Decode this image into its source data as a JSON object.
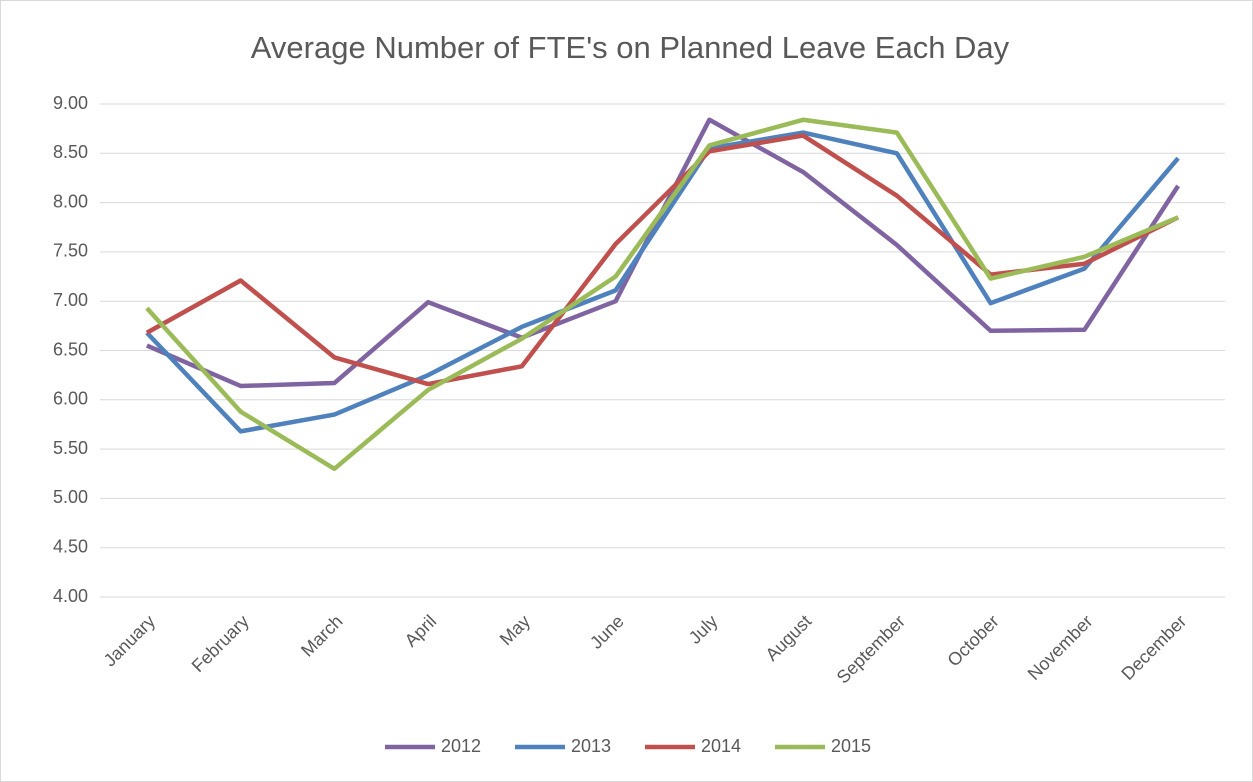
{
  "chart_data": {
    "type": "line",
    "title": "Average Number of FTE's on Planned Leave Each Day",
    "categories": [
      "January",
      "February",
      "March",
      "April",
      "May",
      "June",
      "July",
      "August",
      "September",
      "October",
      "November",
      "December"
    ],
    "series": [
      {
        "name": "2012",
        "color": "#8064a2",
        "values": [
          6.55,
          6.14,
          6.17,
          6.99,
          6.63,
          7.0,
          8.84,
          8.31,
          7.57,
          6.7,
          6.71,
          8.17
        ]
      },
      {
        "name": "2013",
        "color": "#4f81bd",
        "values": [
          6.68,
          5.68,
          5.85,
          6.25,
          6.74,
          7.11,
          8.55,
          8.71,
          8.5,
          6.98,
          7.33,
          8.45
        ]
      },
      {
        "name": "2014",
        "color": "#c0504d",
        "values": [
          6.68,
          7.21,
          6.43,
          6.16,
          6.34,
          7.58,
          8.52,
          8.68,
          8.07,
          7.27,
          7.38,
          7.85
        ]
      },
      {
        "name": "2015",
        "color": "#9bbb59",
        "values": [
          6.93,
          5.88,
          5.3,
          6.1,
          6.62,
          7.25,
          8.58,
          8.84,
          8.71,
          7.23,
          7.45,
          7.85
        ]
      }
    ],
    "ylim": [
      4,
      9
    ],
    "yticks": [
      {
        "value": 4,
        "label": "4.00"
      },
      {
        "value": 4.5,
        "label": "4.50"
      },
      {
        "value": 5,
        "label": "5.00"
      },
      {
        "value": 5.5,
        "label": "5.50"
      },
      {
        "value": 6,
        "label": "6.00"
      },
      {
        "value": 6.5,
        "label": "6.50"
      },
      {
        "value": 7,
        "label": "7.00"
      },
      {
        "value": 7.5,
        "label": "7.50"
      },
      {
        "value": 8,
        "label": "8.00"
      },
      {
        "value": 8.5,
        "label": "8.50"
      },
      {
        "value": 9,
        "label": "9.00"
      }
    ],
    "grid": true,
    "legend": "bottom"
  }
}
